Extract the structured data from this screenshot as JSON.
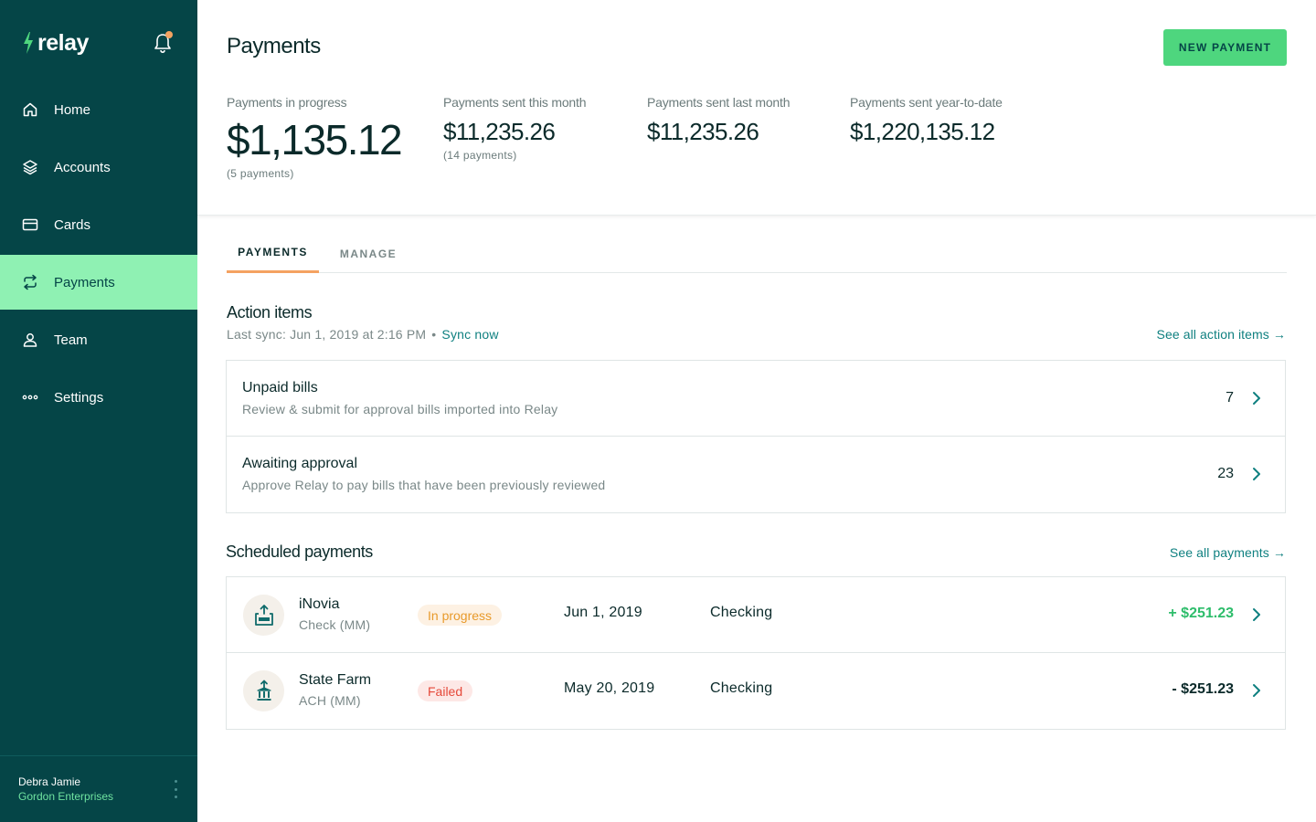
{
  "app": {
    "logo_text": "relay"
  },
  "colors": {
    "sidebar": "#054547",
    "active": "#8ff1b3",
    "accent": "#4ed67e",
    "link": "#0f8080",
    "tab_indicator": "#f4a261"
  },
  "sidebar": {
    "items": [
      {
        "label": "Home",
        "icon": "home-icon"
      },
      {
        "label": "Accounts",
        "icon": "layers-icon"
      },
      {
        "label": "Cards",
        "icon": "card-icon"
      },
      {
        "label": "Payments",
        "icon": "transfer-icon",
        "active": true
      },
      {
        "label": "Team",
        "icon": "user-icon"
      },
      {
        "label": "Settings",
        "icon": "more-icon"
      }
    ],
    "user": {
      "name": "Debra Jamie",
      "org": "Gordon Enterprises"
    }
  },
  "header": {
    "title": "Payments",
    "new_payment_label": "NEW PAYMENT",
    "stats": [
      {
        "label": "Payments in progress",
        "value": "$1,135.12",
        "sub": "(5 payments)"
      },
      {
        "label": "Payments sent this month",
        "value": "$11,235.26",
        "sub": "(14 payments)"
      },
      {
        "label": "Payments sent last month",
        "value": "$11,235.26"
      },
      {
        "label": "Payments sent year-to-date",
        "value": "$1,220,135.12"
      }
    ]
  },
  "tabs": [
    {
      "label": "PAYMENTS",
      "active": true
    },
    {
      "label": "MANAGE"
    }
  ],
  "action_items": {
    "title": "Action items",
    "sync_text": "Last sync: Jun 1, 2019 at 2:16 PM",
    "sync_separator": "•",
    "sync_now": "Sync now",
    "see_all": "See all action items →",
    "rows": [
      {
        "title": "Unpaid bills",
        "subtitle": "Review & submit for approval bills imported into Relay",
        "count": "7"
      },
      {
        "title": "Awaiting approval",
        "subtitle": "Approve Relay to pay bills that have been previously reviewed",
        "count": "23"
      }
    ]
  },
  "scheduled": {
    "title": "Scheduled payments",
    "see_all": "See all payments →",
    "rows": [
      {
        "name": "iNovia",
        "method": "Check (MM)",
        "status": "In progress",
        "date": "Jun 1, 2019",
        "account": "Checking",
        "amount": "+ $251.23",
        "icon": "check-mail-icon"
      },
      {
        "name": "State Farm",
        "method": "ACH (MM)",
        "status": "Failed",
        "date": "May 20, 2019",
        "account": "Checking",
        "amount": "- $251.23",
        "icon": "bank-icon"
      }
    ]
  }
}
